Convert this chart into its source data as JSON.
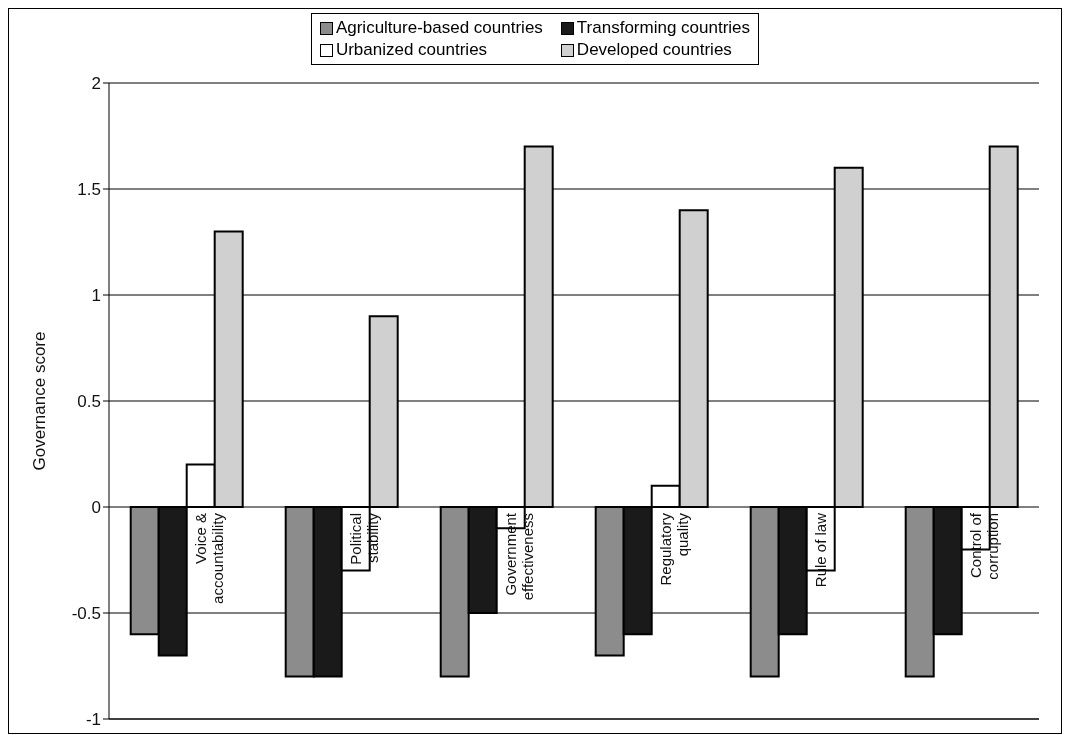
{
  "chart_data": {
    "type": "bar",
    "ylabel": "Governance score",
    "categories": [
      "Voice & accountability",
      "Political stability",
      "Government effectiveness",
      "Regulatory quality",
      "Rule of law",
      "Control of corruption"
    ],
    "series": [
      {
        "name": "Agriculture-based countries",
        "color": "#8c8c8c",
        "values": [
          -0.6,
          -0.8,
          -0.8,
          -0.7,
          -0.8,
          -0.8
        ]
      },
      {
        "name": "Transforming countries",
        "color": "#1a1a1a",
        "values": [
          -0.7,
          -0.8,
          -0.5,
          -0.6,
          -0.6,
          -0.6
        ]
      },
      {
        "name": "Urbanized countries",
        "color": "#ffffff",
        "values": [
          0.2,
          -0.3,
          -0.1,
          0.1,
          -0.3,
          -0.2
        ]
      },
      {
        "name": "Developed countries",
        "color": "#d0d0d0",
        "values": [
          1.3,
          0.9,
          1.7,
          1.4,
          1.6,
          1.7
        ]
      }
    ],
    "ylim": [
      -1,
      2
    ],
    "yticks": [
      -1,
      -0.5,
      0,
      0.5,
      1,
      1.5,
      2
    ],
    "grid": "y",
    "legend": "top"
  }
}
